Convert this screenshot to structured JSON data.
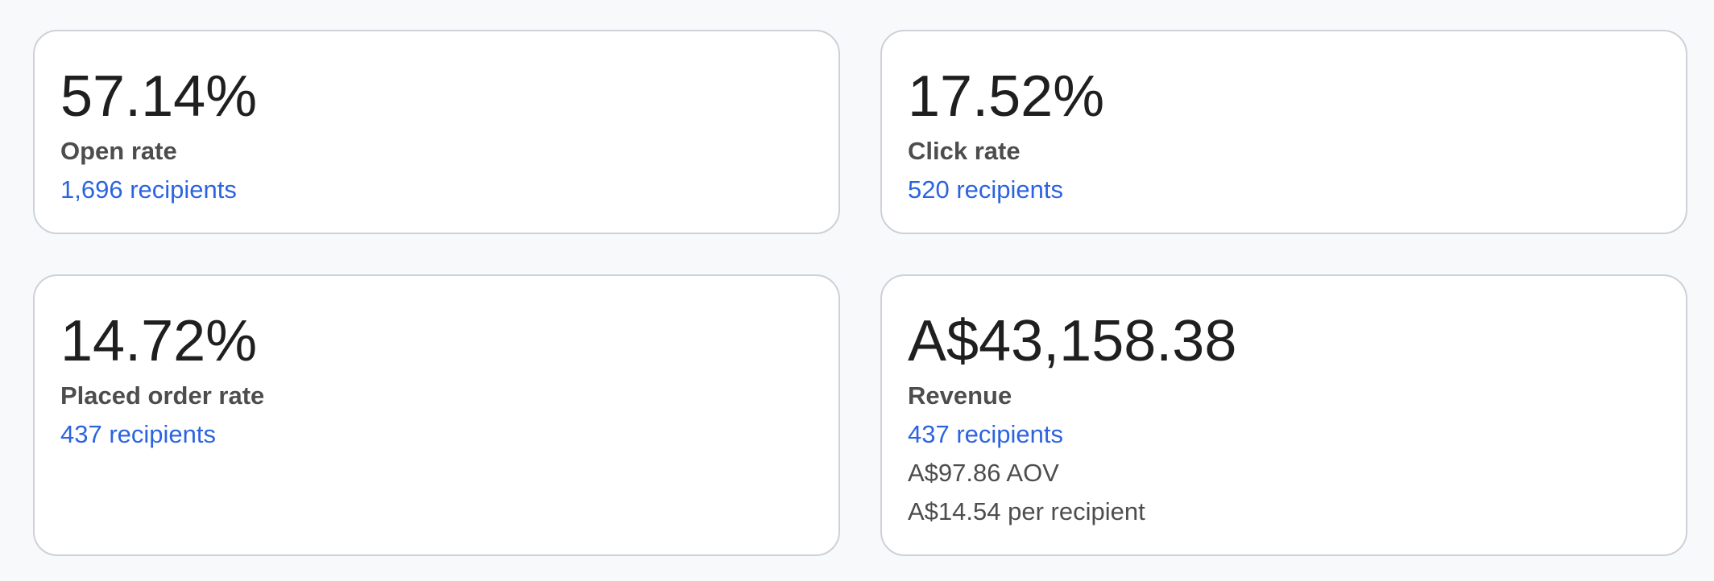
{
  "cards": [
    {
      "value": "57.14%",
      "label": "Open rate",
      "recipients": "1,696 recipients"
    },
    {
      "value": "17.52%",
      "label": "Click rate",
      "recipients": "520 recipients"
    },
    {
      "value": "14.72%",
      "label": "Placed order rate",
      "recipients": "437 recipients"
    },
    {
      "value": "A$43,158.38",
      "label": "Revenue",
      "recipients": "437 recipients",
      "aov": "A$97.86 AOV",
      "per_recipient": "A$14.54 per recipient"
    }
  ],
  "colors": {
    "background": "#f8f9fb",
    "card": "#ffffff",
    "border": "#cdd1d8",
    "value_text": "#1f1f1f",
    "label_text": "#4d4d4d",
    "link": "#2c64e0"
  }
}
